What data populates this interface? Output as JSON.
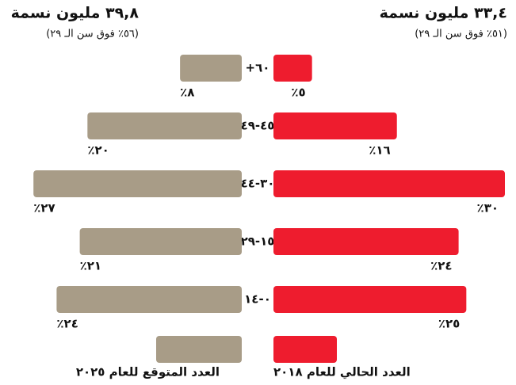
{
  "chart_data": {
    "type": "butterfly_bar",
    "annotations": [
      {
        "title": "٣٣,٤ مليون نسمة",
        "subtitle": "(٥١٪ فوق سن الـ ٢٩)"
      },
      {
        "title": "٣٩,٨ مليون نسمة",
        "subtitle": "(٥٦٪ فوق سن الـ ٢٩)"
      }
    ],
    "categories": [
      "٦٠+",
      "٤٥-٤٩",
      "٣٠-٤٤",
      "١٥-٢٩",
      "٠-١٤"
    ],
    "xlim": [
      0,
      30
    ],
    "series": [
      {
        "name": "العدد الحالي للعام ٢٠١٨",
        "color": "#ee1c2e",
        "side": "right",
        "values": [
          5,
          16,
          30,
          24,
          25
        ],
        "value_labels": [
          "٥٪",
          "١٦٪",
          "٣٠٪",
          "٢٤٪",
          "٢٥٪"
        ]
      },
      {
        "name": "العدد المتوقع للعام ٢٠٢٥",
        "color": "#a89c87",
        "side": "left",
        "values": [
          8,
          20,
          27,
          21,
          24
        ],
        "value_labels": [
          "٨٪",
          "٢٠٪",
          "٢٧٪",
          "٢١٪",
          "٢٤٪"
        ]
      }
    ]
  }
}
